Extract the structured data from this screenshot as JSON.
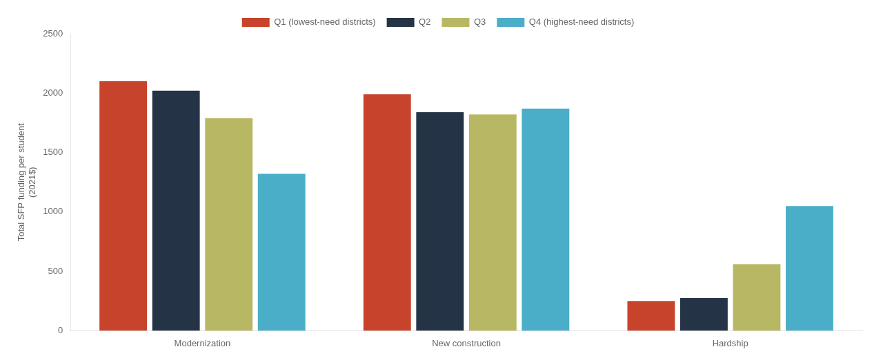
{
  "chart_data": {
    "type": "bar",
    "categories": [
      "Modernization",
      "New construction",
      "Hardship"
    ],
    "series": [
      {
        "name": "Q1 (lowest-need districts)",
        "color": "#C8432B",
        "values": [
          2100,
          1990,
          250
        ]
      },
      {
        "name": "Q2",
        "color": "#253347",
        "values": [
          2020,
          1840,
          275
        ]
      },
      {
        "name": "Q3",
        "color": "#B8B864",
        "values": [
          1790,
          1820,
          560
        ]
      },
      {
        "name": "Q4 (highest-need districts)",
        "color": "#4BAEC8",
        "values": [
          1320,
          1870,
          1050
        ]
      }
    ],
    "ylabel": "Total SFP funding per student\n(2021$)",
    "ylim": [
      0,
      2500
    ],
    "yticks": [
      0,
      500,
      1000,
      1500,
      2000,
      2500
    ],
    "grid": false,
    "legend": "top"
  }
}
